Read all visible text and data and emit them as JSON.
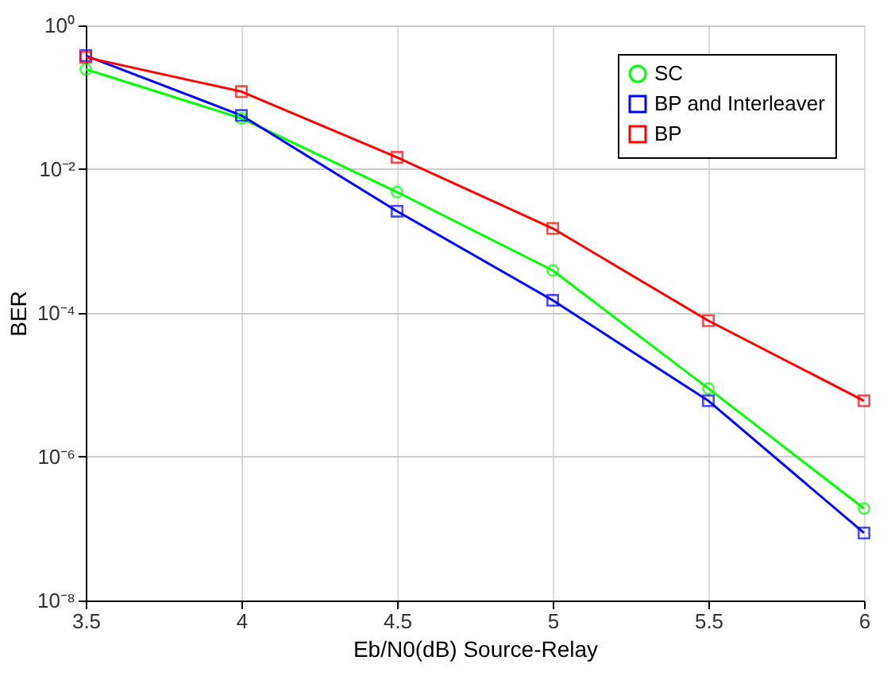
{
  "chart_data": {
    "type": "line",
    "xlabel": "Eb/N0(dB) Source-Relay",
    "ylabel": "BER",
    "x": [
      3.5,
      4,
      4.5,
      5,
      5.5,
      6
    ],
    "series": [
      {
        "name": "SC",
        "color": "#00ff00",
        "marker": "circle",
        "values": [
          0.245,
          0.051,
          0.0048,
          0.00039,
          8.9e-06,
          1.9e-07
        ]
      },
      {
        "name": "BP and Interleaver",
        "color": "#0000ff",
        "marker": "square",
        "values": [
          0.38,
          0.056,
          0.0026,
          0.00015,
          6e-06,
          8.7e-08
        ]
      },
      {
        "name": "BP",
        "color": "#ff0000",
        "marker": "square",
        "values": [
          0.36,
          0.12,
          0.0146,
          0.0015,
          7.8e-05,
          6e-06
        ]
      }
    ],
    "log": "y",
    "xlim": [
      3.5,
      6
    ],
    "xticks": [
      3.5,
      4,
      4.5,
      5,
      5.5,
      6
    ],
    "ylim": [
      1e-08,
      1
    ],
    "yticks": [
      {
        "value": 1e-08,
        "label": "10⁻⁸"
      },
      {
        "value": 1e-06,
        "label": "10⁻⁶"
      },
      {
        "value": 0.0001,
        "label": "10⁻⁴"
      },
      {
        "value": 0.01,
        "label": "10⁻²"
      },
      {
        "value": 1,
        "label": "10⁰"
      }
    ],
    "grid": true,
    "legend": "top right",
    "line_style": "solid"
  }
}
